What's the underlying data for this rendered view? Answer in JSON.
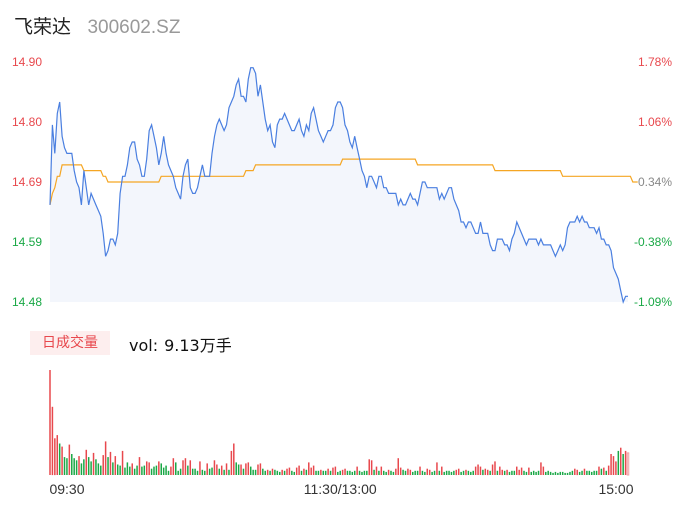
{
  "header": {
    "stock_name": "飞荣达",
    "stock_code": "300602.SZ"
  },
  "volume_panel": {
    "tab_label": "日成交量",
    "readout_label": "vol:",
    "readout_value": "9.13万手"
  },
  "colors": {
    "price_line": "#4a7fe0",
    "avg_line": "#f5a623",
    "area_fill": "#f3f6fc",
    "up": "#e8484d",
    "down": "#1aa846",
    "axis_text_neutral": "#888888",
    "last_bar_outline": "#f19ea2"
  },
  "chart_data": [
    {
      "type": "line",
      "y_tick_labels": [
        "14.90",
        "14.80",
        "14.69",
        "14.59",
        "14.48"
      ],
      "y_right_tick_labels": [
        "1.78%",
        "1.06%",
        "0.34%",
        "-0.38%",
        "-1.09%"
      ],
      "ylim": [
        14.48,
        14.9
      ],
      "prev_close": 14.64,
      "grid": false,
      "x_ticks": [
        {
          "i": 0,
          "label": "09:30"
        },
        {
          "i": 120,
          "label": "11:30/13:00"
        },
        {
          "i": 240,
          "label": "15:00"
        }
      ],
      "series": [
        {
          "values": [
            14.65,
            14.79,
            14.74,
            14.81,
            14.83,
            14.77,
            14.75,
            14.74,
            14.74,
            14.74,
            14.71,
            14.69,
            14.68,
            14.65,
            14.71,
            14.68,
            14.65,
            14.67,
            14.66,
            14.65,
            14.64,
            14.63,
            14.6,
            14.56,
            14.57,
            14.59,
            14.59,
            14.58,
            14.6,
            14.67,
            14.7,
            14.7,
            14.72,
            14.75,
            14.76,
            14.76,
            14.73,
            14.72,
            14.7,
            14.7,
            14.73,
            14.78,
            14.79,
            14.77,
            14.75,
            14.72,
            14.74,
            14.77,
            14.74,
            14.72,
            14.71,
            14.7,
            14.68,
            14.67,
            14.66,
            14.7,
            14.72,
            14.73,
            14.68,
            14.67,
            14.67,
            14.68,
            14.7,
            14.72,
            14.7,
            14.7,
            14.7,
            14.74,
            14.77,
            14.79,
            14.8,
            14.79,
            14.78,
            14.79,
            14.82,
            14.83,
            14.84,
            14.86,
            14.87,
            14.84,
            14.84,
            14.83,
            14.87,
            14.89,
            14.89,
            14.88,
            14.84,
            14.86,
            14.83,
            14.8,
            14.78,
            14.79,
            14.76,
            14.75,
            14.79,
            14.8,
            14.8,
            14.81,
            14.8,
            14.79,
            14.78,
            14.78,
            14.79,
            14.8,
            14.78,
            14.77,
            14.79,
            14.78,
            14.81,
            14.82,
            14.8,
            14.78,
            14.77,
            14.76,
            14.77,
            14.78,
            14.78,
            14.79,
            14.82,
            14.83,
            14.83,
            14.82,
            14.79,
            14.78,
            14.76,
            14.75,
            14.77,
            14.75,
            14.73,
            14.71,
            14.7,
            14.68,
            14.7,
            14.7,
            14.69,
            14.68,
            14.7,
            14.7,
            14.68,
            14.68,
            14.67,
            14.67,
            14.67,
            14.67,
            14.65,
            14.66,
            14.65,
            14.65,
            14.66,
            14.67,
            14.66,
            14.66,
            14.65,
            14.67,
            14.69,
            14.69,
            14.68,
            14.68,
            14.68,
            14.68,
            14.68,
            14.66,
            14.67,
            14.66,
            14.67,
            14.68,
            14.68,
            14.66,
            14.65,
            14.64,
            14.62,
            14.62,
            14.61,
            14.62,
            14.62,
            14.61,
            14.6,
            14.6,
            14.62,
            14.6,
            14.6,
            14.6,
            14.58,
            14.57,
            14.57,
            14.59,
            14.59,
            14.59,
            14.58,
            14.58,
            14.57,
            14.59,
            14.6,
            14.62,
            14.61,
            14.6,
            14.59,
            14.58,
            14.59,
            14.59,
            14.59,
            14.59,
            14.58,
            14.59,
            14.58,
            14.58,
            14.58,
            14.58,
            14.57,
            14.56,
            14.57,
            14.58,
            14.57,
            14.58,
            14.61,
            14.62,
            14.62,
            14.62,
            14.63,
            14.62,
            14.63,
            14.62,
            14.62,
            14.61,
            14.61,
            14.61,
            14.6,
            14.61,
            14.59,
            14.59,
            14.58,
            14.58,
            14.57,
            14.54,
            14.53,
            14.52,
            14.5,
            14.48,
            14.49,
            14.49
          ]
        },
        {
          "values": [
            14.65,
            14.67,
            14.68,
            14.7,
            14.7,
            14.72,
            14.72,
            14.72,
            14.72,
            14.72,
            14.72,
            14.72,
            14.72,
            14.72,
            14.71,
            14.71,
            14.71,
            14.71,
            14.71,
            14.71,
            14.71,
            14.71,
            14.7,
            14.7,
            14.69,
            14.69,
            14.69,
            14.69,
            14.69,
            14.69,
            14.69,
            14.69,
            14.69,
            14.69,
            14.69,
            14.69,
            14.69,
            14.69,
            14.69,
            14.69,
            14.69,
            14.69,
            14.69,
            14.69,
            14.69,
            14.69,
            14.7,
            14.7,
            14.7,
            14.7,
            14.7,
            14.7,
            14.7,
            14.7,
            14.7,
            14.7,
            14.7,
            14.7,
            14.7,
            14.7,
            14.7,
            14.7,
            14.7,
            14.7,
            14.7,
            14.7,
            14.7,
            14.7,
            14.7,
            14.7,
            14.7,
            14.7,
            14.7,
            14.7,
            14.7,
            14.7,
            14.7,
            14.7,
            14.7,
            14.7,
            14.7,
            14.71,
            14.71,
            14.71,
            14.71,
            14.72,
            14.72,
            14.72,
            14.72,
            14.72,
            14.72,
            14.72,
            14.72,
            14.72,
            14.72,
            14.72,
            14.72,
            14.72,
            14.72,
            14.72,
            14.72,
            14.72,
            14.72,
            14.72,
            14.72,
            14.72,
            14.72,
            14.72,
            14.72,
            14.72,
            14.72,
            14.72,
            14.72,
            14.72,
            14.72,
            14.72,
            14.72,
            14.72,
            14.72,
            14.72,
            14.72,
            14.73,
            14.73,
            14.73,
            14.73,
            14.73,
            14.73,
            14.73,
            14.73,
            14.73,
            14.73,
            14.73,
            14.73,
            14.73,
            14.73,
            14.73,
            14.73,
            14.73,
            14.73,
            14.73,
            14.73,
            14.73,
            14.73,
            14.73,
            14.73,
            14.73,
            14.73,
            14.73,
            14.73,
            14.73,
            14.73,
            14.73,
            14.72,
            14.72,
            14.72,
            14.72,
            14.72,
            14.72,
            14.72,
            14.72,
            14.72,
            14.72,
            14.72,
            14.72,
            14.72,
            14.72,
            14.72,
            14.72,
            14.72,
            14.72,
            14.72,
            14.72,
            14.72,
            14.72,
            14.72,
            14.72,
            14.72,
            14.72,
            14.72,
            14.72,
            14.72,
            14.72,
            14.72,
            14.72,
            14.71,
            14.71,
            14.71,
            14.71,
            14.71,
            14.71,
            14.71,
            14.71,
            14.71,
            14.71,
            14.71,
            14.71,
            14.71,
            14.71,
            14.71,
            14.71,
            14.71,
            14.71,
            14.71,
            14.71,
            14.71,
            14.71,
            14.71,
            14.71,
            14.71,
            14.71,
            14.71,
            14.71,
            14.7,
            14.7,
            14.7,
            14.7,
            14.7,
            14.7,
            14.7,
            14.7,
            14.7,
            14.7,
            14.7,
            14.7,
            14.7,
            14.7,
            14.7,
            14.7,
            14.7,
            14.7,
            14.7,
            14.7,
            14.7,
            14.7,
            14.7,
            14.7,
            14.7,
            14.7,
            14.7,
            14.7,
            14.7,
            14.69,
            14.69,
            14.69
          ]
        }
      ]
    },
    {
      "type": "bar",
      "x_ticks": [
        {
          "i": 0,
          "label": "09:30"
        },
        {
          "i": 120,
          "label": "11:30/13:00"
        },
        {
          "i": 240,
          "label": "15:00"
        }
      ],
      "values": [
        1000,
        650,
        350,
        380,
        300,
        270,
        170,
        160,
        290,
        200,
        160,
        140,
        180,
        110,
        150,
        240,
        170,
        130,
        210,
        150,
        110,
        90,
        190,
        320,
        170,
        220,
        120,
        180,
        100,
        90,
        230,
        70,
        120,
        80,
        110,
        60,
        90,
        170,
        80,
        90,
        130,
        120,
        60,
        80,
        90,
        130,
        110,
        70,
        90,
        40,
        80,
        160,
        120,
        40,
        60,
        140,
        160,
        90,
        140,
        60,
        60,
        40,
        130,
        50,
        40,
        110,
        60,
        70,
        140,
        100,
        60,
        90,
        50,
        110,
        50,
        230,
        300,
        120,
        100,
        100,
        60,
        110,
        120,
        80,
        50,
        50,
        100,
        110,
        60,
        40,
        50,
        40,
        60,
        50,
        40,
        30,
        50,
        40,
        60,
        70,
        40,
        30,
        70,
        90,
        40,
        60,
        50,
        120,
        70,
        90,
        40,
        40,
        50,
        40,
        40,
        60,
        40,
        70,
        80,
        30,
        40,
        50,
        60,
        40,
        40,
        30,
        40,
        80,
        40,
        30,
        40,
        40,
        150,
        140,
        50,
        80,
        40,
        80,
        40,
        30,
        50,
        40,
        30,
        60,
        160,
        70,
        50,
        40,
        60,
        50,
        30,
        40,
        40,
        80,
        40,
        30,
        60,
        50,
        30,
        40,
        120,
        40,
        80,
        30,
        40,
        40,
        30,
        40,
        50,
        60,
        30,
        40,
        50,
        40,
        30,
        40,
        80,
        100,
        80,
        50,
        60,
        50,
        40,
        100,
        130,
        40,
        80,
        50,
        40,
        50,
        30,
        40,
        40,
        80,
        50,
        70,
        40,
        30,
        70,
        30,
        40,
        30,
        40,
        120,
        80,
        30,
        40,
        30,
        20,
        30,
        20,
        30,
        30,
        20,
        20,
        30,
        40,
        60,
        50,
        30,
        40,
        60,
        40,
        40,
        30,
        40,
        40,
        80,
        60,
        70,
        40,
        90,
        200,
        180,
        130,
        230,
        260,
        200,
        230,
        210
      ],
      "colors": [
        "up",
        "up",
        "up",
        "up",
        "down",
        "up",
        "down",
        "down",
        "up",
        "down",
        "down",
        "down",
        "up",
        "down",
        "down",
        "up",
        "down",
        "down",
        "up",
        "down",
        "down",
        "down",
        "up",
        "up",
        "down",
        "up",
        "down",
        "up",
        "down",
        "down",
        "up",
        "down",
        "down",
        "down",
        "up",
        "down",
        "down",
        "up",
        "down",
        "down",
        "up",
        "up",
        "down",
        "down",
        "down",
        "up",
        "down",
        "down",
        "down",
        "down",
        "up",
        "up",
        "down",
        "down",
        "down",
        "up",
        "up",
        "down",
        "up",
        "down",
        "down",
        "down",
        "up",
        "down",
        "down",
        "up",
        "down",
        "down",
        "up",
        "up",
        "down",
        "up",
        "down",
        "up",
        "down",
        "up",
        "up",
        "down",
        "down",
        "up",
        "down",
        "up",
        "up",
        "down",
        "down",
        "down",
        "up",
        "up",
        "down",
        "down",
        "up",
        "down",
        "up",
        "down",
        "down",
        "down",
        "up",
        "down",
        "up",
        "up",
        "down",
        "down",
        "up",
        "up",
        "down",
        "up",
        "down",
        "up",
        "up",
        "up",
        "down",
        "down",
        "up",
        "down",
        "down",
        "up",
        "down",
        "up",
        "up",
        "down",
        "down",
        "up",
        "up",
        "down",
        "down",
        "down",
        "down",
        "up",
        "down",
        "down",
        "down",
        "down",
        "up",
        "up",
        "down",
        "up",
        "down",
        "up",
        "down",
        "down",
        "up",
        "down",
        "down",
        "up",
        "up",
        "up",
        "down",
        "down",
        "up",
        "up",
        "down",
        "down",
        "down",
        "up",
        "down",
        "down",
        "up",
        "up",
        "down",
        "down",
        "up",
        "down",
        "up",
        "down",
        "down",
        "down",
        "down",
        "down",
        "up",
        "up",
        "down",
        "down",
        "up",
        "down",
        "down",
        "down",
        "up",
        "up",
        "up",
        "down",
        "up",
        "up",
        "down",
        "up",
        "up",
        "down",
        "up",
        "up",
        "down",
        "up",
        "down",
        "down",
        "down",
        "up",
        "up",
        "up",
        "down",
        "down",
        "up",
        "down",
        "down",
        "down",
        "down",
        "up",
        "up",
        "down",
        "down",
        "down",
        "down",
        "down",
        "down",
        "down",
        "down",
        "down",
        "down",
        "down",
        "down",
        "up",
        "up",
        "down",
        "down",
        "up",
        "down",
        "down",
        "down",
        "down",
        "down",
        "up",
        "down",
        "up",
        "down",
        "up",
        "up",
        "up",
        "up",
        "down",
        "up",
        "down",
        "up",
        "outline"
      ],
      "ylim": [
        0,
        1000
      ],
      "grid": false
    }
  ]
}
